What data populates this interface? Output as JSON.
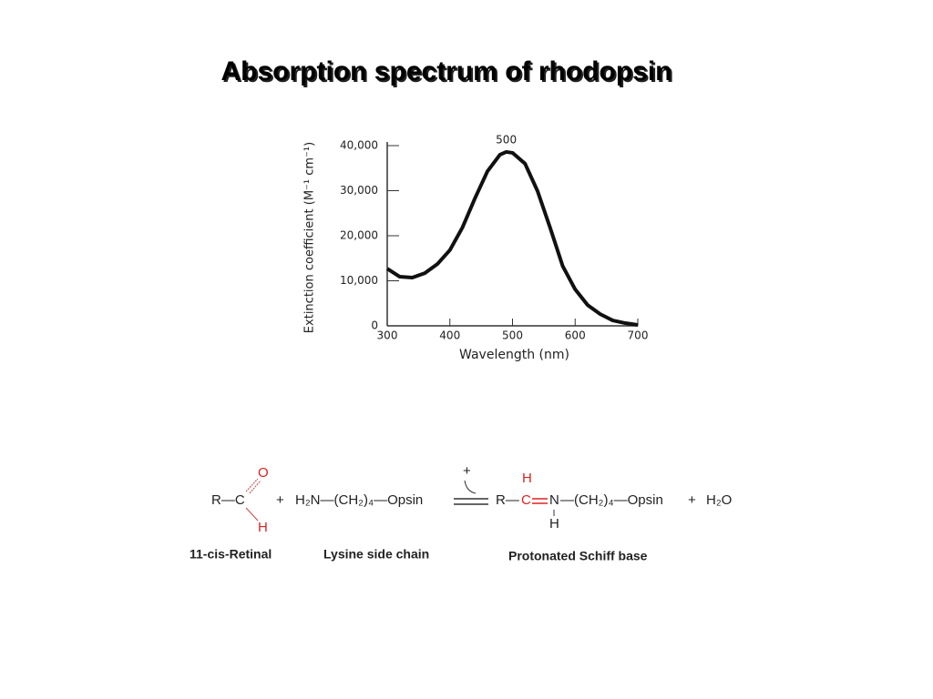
{
  "title": "Absorption spectrum of rhodopsin",
  "chart_data": {
    "type": "line",
    "annotation": "500",
    "xlabel": "Wavelength (nm)",
    "ylabel": "Extinction coefficient (M⁻¹ cm⁻¹)",
    "x": [
      300,
      320,
      340,
      360,
      380,
      400,
      420,
      440,
      460,
      480,
      490,
      500,
      520,
      540,
      560,
      580,
      600,
      620,
      640,
      660,
      680,
      700
    ],
    "series": [
      {
        "name": "Rhodopsin",
        "color": "#111111",
        "values": [
          12700,
          10900,
          10700,
          11700,
          13700,
          16800,
          21800,
          28300,
          34300,
          38000,
          38600,
          38400,
          36000,
          29900,
          21800,
          13300,
          8100,
          4600,
          2600,
          1200,
          600,
          200
        ]
      }
    ],
    "xlim": [
      300,
      700
    ],
    "xticks": [
      300,
      400,
      500,
      600,
      700
    ],
    "ylim": [
      0,
      40000
    ],
    "yticks": [
      0,
      {
        "value": 10000,
        "label": "10,000"
      },
      {
        "value": 20000,
        "label": "20,000"
      },
      {
        "value": 30000,
        "label": "30,000"
      },
      {
        "value": 40000,
        "label": "40,000"
      }
    ]
  },
  "reaction": {
    "retinal": {
      "r": "R—C",
      "o": "O",
      "h": "H"
    },
    "plus1": "+",
    "lysine": "H₂N—(CH₂)₄—Opsin",
    "catalyst": "+",
    "product": {
      "r": "R—",
      "c": "C",
      "n": "N",
      "chain": "—(CH₂)₄—Opsin",
      "h_c": "H",
      "h_n": "H"
    },
    "plus2": "+",
    "water": "H₂O",
    "labels": [
      "11-cis-Retinal",
      "Lysine side chain",
      "Protonated Schiff base"
    ]
  }
}
